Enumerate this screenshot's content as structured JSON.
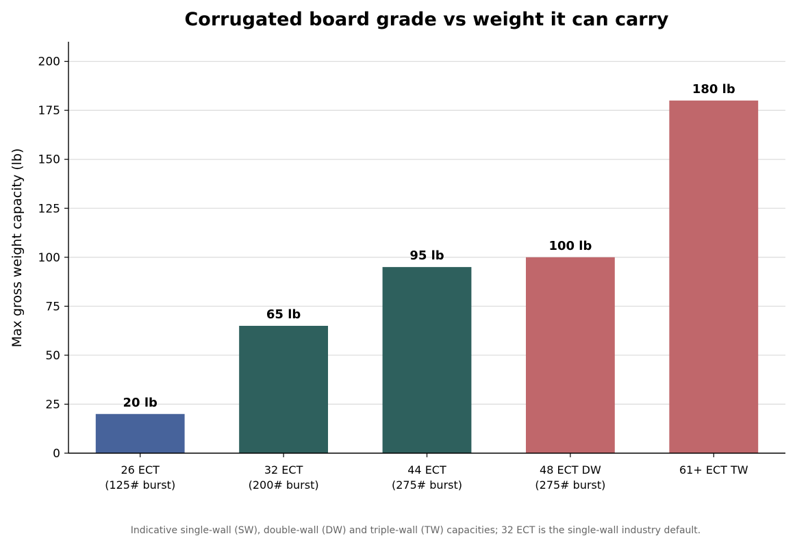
{
  "chart_data": {
    "type": "bar",
    "title": "Corrugated board grade vs weight it can carry",
    "xlabel": "",
    "ylabel": "Max gross weight capacity (lb)",
    "ylim": [
      0,
      210
    ],
    "yticks": [
      0,
      25,
      50,
      75,
      100,
      125,
      150,
      175,
      200
    ],
    "grid": true,
    "categories": [
      [
        "26 ECT",
        "(125# burst)"
      ],
      [
        "32 ECT",
        "(200# burst)"
      ],
      [
        "44 ECT",
        "(275# burst)"
      ],
      [
        "48 ECT DW",
        "(275# burst)"
      ],
      [
        "61+ ECT TW"
      ]
    ],
    "values": [
      20,
      65,
      95,
      100,
      180
    ],
    "data_labels": [
      "20 lb",
      "65 lb",
      "95 lb",
      "100 lb",
      "180 lb"
    ],
    "colors": [
      "#47639b",
      "#2e605d",
      "#2e605d",
      "#c0676b",
      "#c0676b"
    ],
    "footnote": "Indicative single-wall (SW), double-wall (DW) and triple-wall (TW) capacities; 32 ECT is the single-wall industry default."
  }
}
